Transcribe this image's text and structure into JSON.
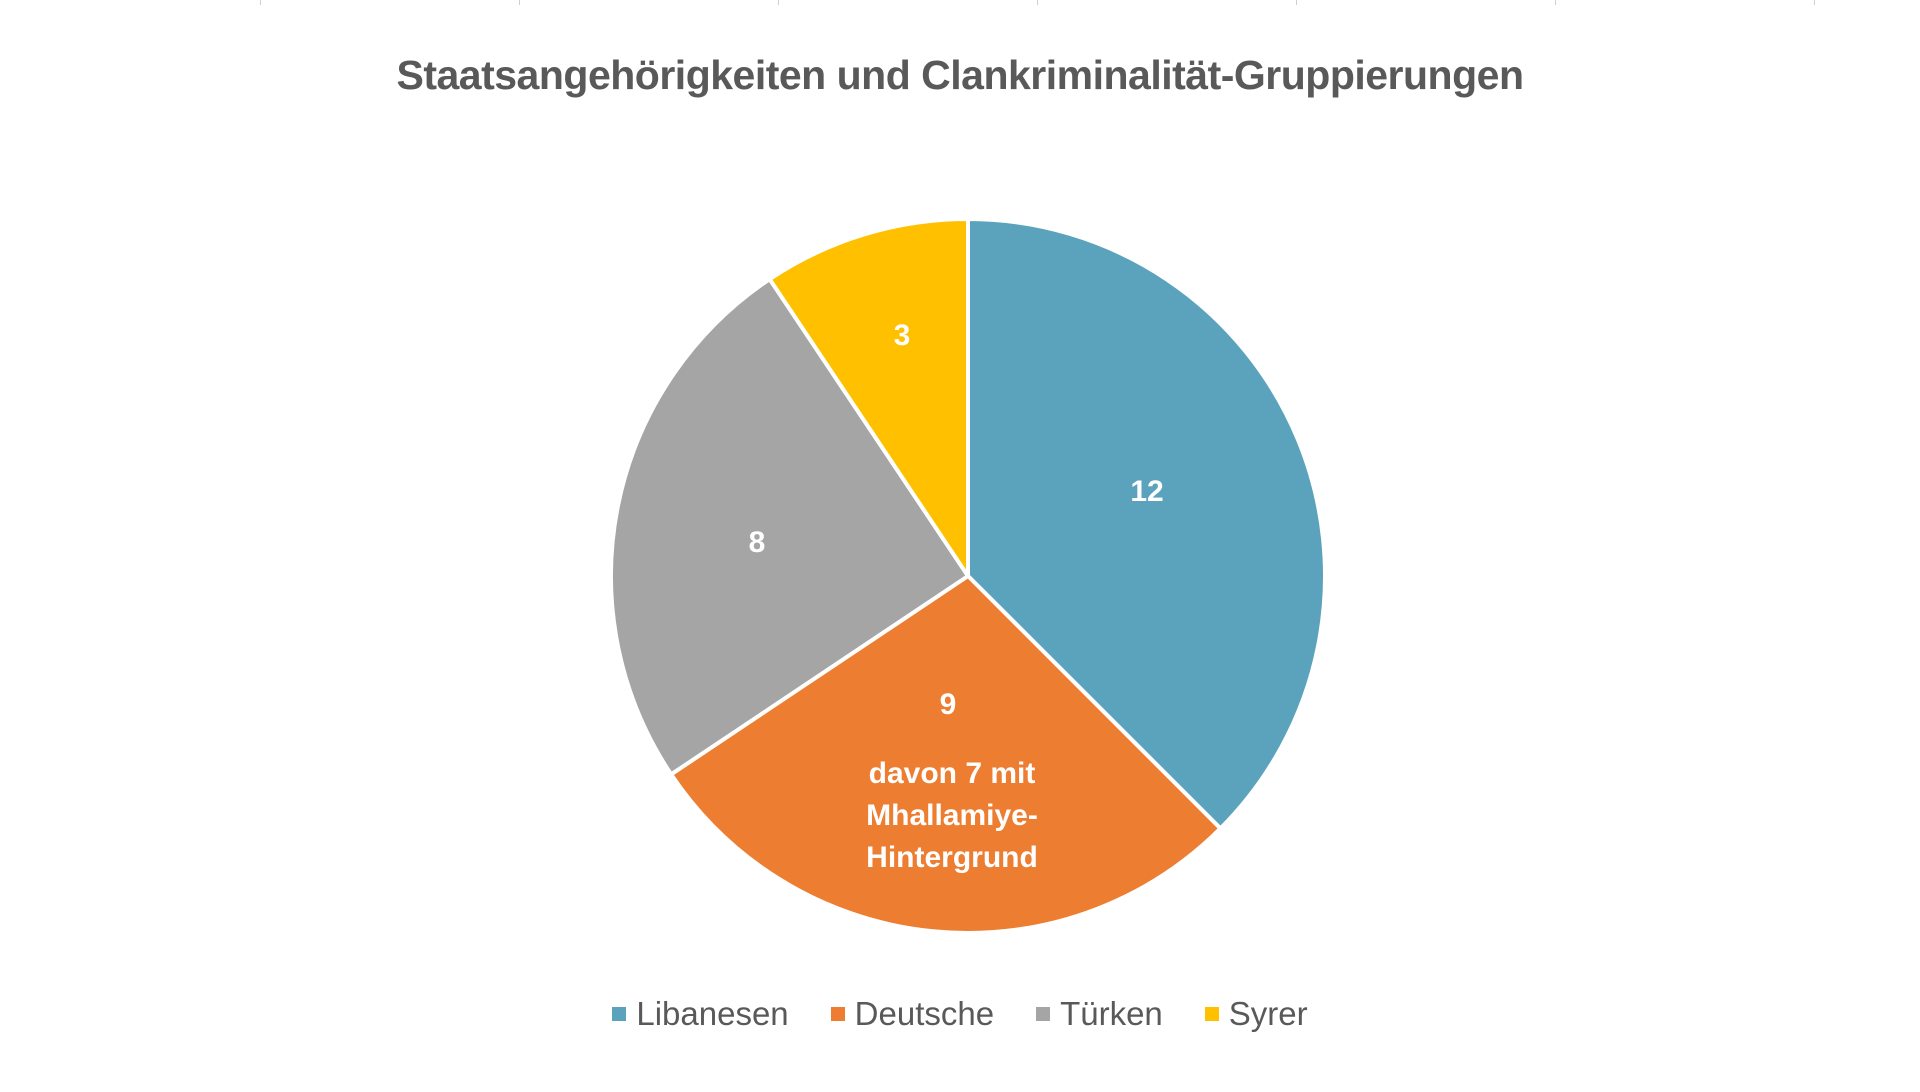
{
  "chart_data": {
    "type": "pie",
    "title": "Staatsangehörigkeiten und Clankriminalität-Gruppierungen",
    "categories": [
      "Libanesen",
      "Deutsche",
      "Türken",
      "Syrer"
    ],
    "values": [
      12,
      9,
      8,
      3
    ],
    "colors": [
      "#5ba3bd",
      "#ed7d31",
      "#a5a5a5",
      "#ffc000"
    ],
    "data_labels": [
      "12",
      "9",
      "8",
      "3"
    ],
    "annotations": [
      {
        "category": "Deutsche",
        "text": "davon 7 mit Mhallamiye-Hintergrund"
      }
    ],
    "start_angle": "12 o'clock, clockwise",
    "legend_position": "bottom"
  },
  "title": "Staatsangehörigkeiten und Clankriminalität-Gruppierungen",
  "labels": {
    "libanesen": "12",
    "deutsche": "9",
    "tuerken": "8",
    "syrer": "3",
    "deutsche_note_1": "davon 7 mit",
    "deutsche_note_2": "Mhallamiye-",
    "deutsche_note_3": "Hintergrund"
  },
  "legend": [
    {
      "label": "Libanesen",
      "color": "#5ba3bd"
    },
    {
      "label": "Deutsche",
      "color": "#ed7d31"
    },
    {
      "label": "Türken",
      "color": "#a5a5a5"
    },
    {
      "label": "Syrer",
      "color": "#ffc000"
    }
  ]
}
